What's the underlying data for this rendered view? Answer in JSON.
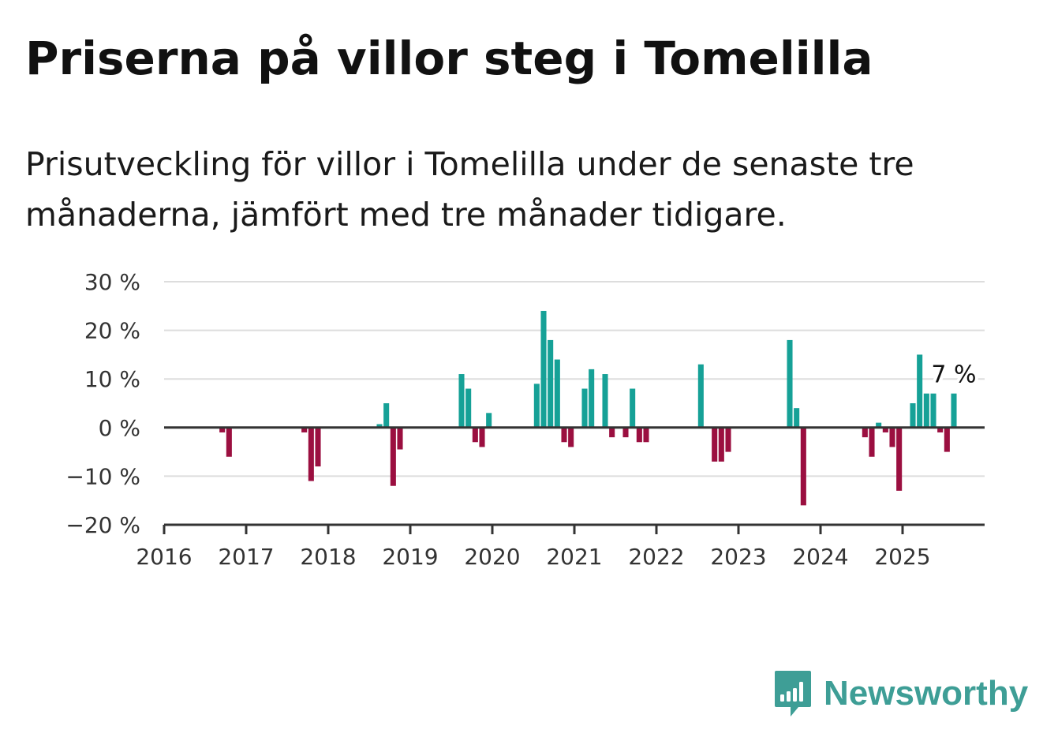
{
  "header": {
    "title": "Priserna på villor steg i Tomelilla",
    "subtitle": "Prisutveckling för villor i Tomelilla under de senaste tre månaderna, jämfört med tre månader tidigare."
  },
  "colors": {
    "positive": "#16a197",
    "negative": "#9b0f40",
    "grid": "#dddddd",
    "axis": "#333333",
    "brand": "#3e9e96"
  },
  "chart_data": {
    "type": "bar",
    "ylim": [
      -20,
      30
    ],
    "y_ticks": [
      {
        "value": 30,
        "label": "30 %"
      },
      {
        "value": 20,
        "label": "20 %"
      },
      {
        "value": 10,
        "label": "10 %"
      },
      {
        "value": 0,
        "label": "0 %"
      },
      {
        "value": -10,
        "label": "−10 %"
      },
      {
        "value": -20,
        "label": "−20 %"
      }
    ],
    "x_ticks": [
      {
        "year": 2016,
        "label": "2016"
      },
      {
        "year": 2017,
        "label": "2017"
      },
      {
        "year": 2018,
        "label": "2018"
      },
      {
        "year": 2019,
        "label": "2019"
      },
      {
        "year": 2020,
        "label": "2020"
      },
      {
        "year": 2021,
        "label": "2021"
      },
      {
        "year": 2022,
        "label": "2022"
      },
      {
        "year": 2023,
        "label": "2023"
      },
      {
        "year": 2024,
        "label": "2024"
      },
      {
        "year": 2025,
        "label": "2025"
      }
    ],
    "x_range": [
      "2016-01",
      "2025-12"
    ],
    "grid": true,
    "points": [
      {
        "month": "2016-09",
        "value": -1
      },
      {
        "month": "2016-10",
        "value": -6
      },
      {
        "month": "2017-09",
        "value": -1
      },
      {
        "month": "2017-10",
        "value": -11
      },
      {
        "month": "2017-11",
        "value": -8
      },
      {
        "month": "2018-08",
        "value": 0.7
      },
      {
        "month": "2018-09",
        "value": 5
      },
      {
        "month": "2018-10",
        "value": -12
      },
      {
        "month": "2018-11",
        "value": -4.5
      },
      {
        "month": "2019-08",
        "value": 11
      },
      {
        "month": "2019-09",
        "value": 8
      },
      {
        "month": "2019-10",
        "value": -3
      },
      {
        "month": "2019-11",
        "value": -4
      },
      {
        "month": "2019-12",
        "value": 3
      },
      {
        "month": "2020-07",
        "value": 9
      },
      {
        "month": "2020-08",
        "value": 24
      },
      {
        "month": "2020-09",
        "value": 18
      },
      {
        "month": "2020-10",
        "value": 14
      },
      {
        "month": "2020-11",
        "value": -3
      },
      {
        "month": "2020-12",
        "value": -4
      },
      {
        "month": "2021-02",
        "value": 8
      },
      {
        "month": "2021-03",
        "value": 12
      },
      {
        "month": "2021-05",
        "value": 11
      },
      {
        "month": "2021-06",
        "value": -2
      },
      {
        "month": "2021-08",
        "value": -2
      },
      {
        "month": "2021-09",
        "value": 8
      },
      {
        "month": "2021-10",
        "value": -3
      },
      {
        "month": "2021-11",
        "value": -3
      },
      {
        "month": "2022-07",
        "value": 13
      },
      {
        "month": "2022-09",
        "value": -7
      },
      {
        "month": "2022-10",
        "value": -7
      },
      {
        "month": "2022-11",
        "value": -5
      },
      {
        "month": "2023-08",
        "value": 18
      },
      {
        "month": "2023-09",
        "value": 4
      },
      {
        "month": "2023-10",
        "value": -16
      },
      {
        "month": "2024-07",
        "value": -2
      },
      {
        "month": "2024-08",
        "value": -6
      },
      {
        "month": "2024-09",
        "value": 1
      },
      {
        "month": "2024-10",
        "value": -1
      },
      {
        "month": "2024-11",
        "value": -4
      },
      {
        "month": "2024-12",
        "value": -13
      },
      {
        "month": "2025-02",
        "value": 5
      },
      {
        "month": "2025-03",
        "value": 15
      },
      {
        "month": "2025-04",
        "value": 7
      },
      {
        "month": "2025-05",
        "value": 7
      },
      {
        "month": "2025-06",
        "value": -1
      },
      {
        "month": "2025-07",
        "value": -5
      },
      {
        "month": "2025-08",
        "value": 7
      }
    ],
    "annotation": {
      "month": "2025-08",
      "label": "7 %"
    }
  },
  "brand": {
    "name": "Newsworthy",
    "logo_icon": "newsworthy-bar-chart-bubble-icon"
  }
}
